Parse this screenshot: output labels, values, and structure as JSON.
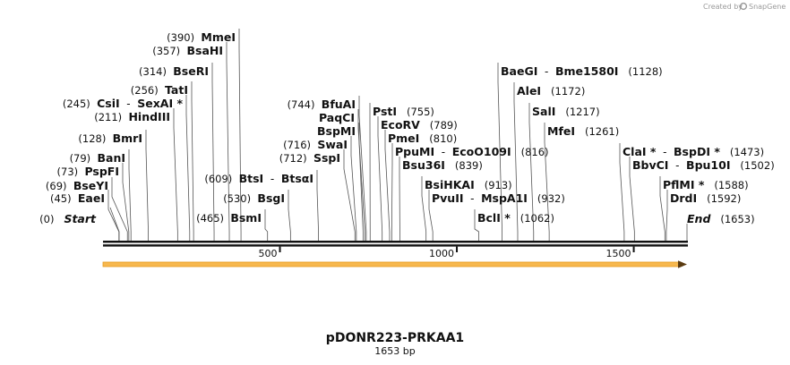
{
  "credit": "Created by",
  "brand": "SnapGene",
  "title": "pDONR223-PRKAA1",
  "subtitle": "1653 bp",
  "sequence_length": 1653,
  "ticks": [
    {
      "value": 500,
      "label": "500"
    },
    {
      "value": 1000,
      "label": "1000"
    },
    {
      "value": 1500,
      "label": "1500"
    }
  ],
  "feature": {
    "name": "orf-arrow",
    "start": 1,
    "end": 1653,
    "direction": "forward",
    "color": "#f5a623"
  },
  "markers": [
    {
      "kind": "start",
      "label": "Start",
      "pos_text": "(0)",
      "site": 0
    },
    {
      "kind": "end",
      "label": "End",
      "pos_text": "(1653)",
      "site": 1653
    }
  ],
  "sites": [
    {
      "pos_text": "(45)",
      "site": 45,
      "names": [
        "EaeI"
      ]
    },
    {
      "pos_text": "(69)",
      "site": 69,
      "names": [
        "BseYI"
      ]
    },
    {
      "pos_text": "(73)",
      "site": 73,
      "names": [
        "PspFI"
      ]
    },
    {
      "pos_text": "(79)",
      "site": 79,
      "names": [
        "BanI"
      ]
    },
    {
      "pos_text": "(128)",
      "site": 128,
      "names": [
        "BmrI"
      ]
    },
    {
      "pos_text": "(211)",
      "site": 211,
      "names": [
        "HindIII"
      ]
    },
    {
      "pos_text": "(245)",
      "site": 245,
      "names": [
        "CsiI",
        "SexAI *"
      ]
    },
    {
      "pos_text": "(256)",
      "site": 256,
      "names": [
        "TatI"
      ]
    },
    {
      "pos_text": "(314)",
      "site": 314,
      "names": [
        "BseRI"
      ]
    },
    {
      "pos_text": "(357)",
      "site": 357,
      "names": [
        "BsaHI"
      ]
    },
    {
      "pos_text": "(390)",
      "site": 390,
      "names": [
        "MmeI"
      ]
    },
    {
      "pos_text": "(465)",
      "site": 465,
      "names": [
        "BsmI"
      ]
    },
    {
      "pos_text": "(530)",
      "site": 530,
      "names": [
        "BsgI"
      ]
    },
    {
      "pos_text": "(609)",
      "site": 609,
      "names": [
        "BtsI",
        "BtsαI"
      ]
    },
    {
      "pos_text": "(712)",
      "site": 712,
      "names": [
        "SspI"
      ]
    },
    {
      "pos_text": "(716)",
      "site": 716,
      "names": [
        "SwaI"
      ]
    },
    {
      "pos_text": "",
      "site": 735,
      "names": [
        "BspMI"
      ]
    },
    {
      "pos_text": "",
      "site": 740,
      "names": [
        "PaqCI"
      ]
    },
    {
      "pos_text": "(744)",
      "site": 744,
      "names": [
        "BfuAI"
      ]
    },
    {
      "pos_text": "(755)",
      "site": 755,
      "names": [
        "PstI"
      ]
    },
    {
      "pos_text": "(789)",
      "site": 789,
      "names": [
        "EcoRV"
      ]
    },
    {
      "pos_text": "(810)",
      "site": 810,
      "names": [
        "PmeI"
      ]
    },
    {
      "pos_text": "(816)",
      "site": 816,
      "names": [
        "PpuMI",
        "EcoO109I"
      ]
    },
    {
      "pos_text": "(839)",
      "site": 839,
      "names": [
        "Bsu36I"
      ]
    },
    {
      "pos_text": "(913)",
      "site": 913,
      "names": [
        "BsiHKAI"
      ]
    },
    {
      "pos_text": "(932)",
      "site": 932,
      "names": [
        "PvuII",
        "MspA1I"
      ]
    },
    {
      "pos_text": "(1062)",
      "site": 1062,
      "names": [
        "BclI *"
      ]
    },
    {
      "pos_text": "(1128)",
      "site": 1128,
      "names": [
        "BaeGI",
        "Bme1580I"
      ]
    },
    {
      "pos_text": "(1172)",
      "site": 1172,
      "names": [
        "AleI"
      ]
    },
    {
      "pos_text": "(1217)",
      "site": 1217,
      "names": [
        "SalI"
      ]
    },
    {
      "pos_text": "(1261)",
      "site": 1261,
      "names": [
        "MfeI"
      ]
    },
    {
      "pos_text": "(1473)",
      "site": 1473,
      "names": [
        "ClaI *",
        "BspDI *"
      ]
    },
    {
      "pos_text": "(1502)",
      "site": 1502,
      "names": [
        "BbvCI",
        "Bpu10I"
      ]
    },
    {
      "pos_text": "(1588)",
      "site": 1588,
      "names": [
        "PflMI *"
      ]
    },
    {
      "pos_text": "(1592)",
      "site": 1592,
      "names": [
        "DrdI"
      ]
    }
  ]
}
